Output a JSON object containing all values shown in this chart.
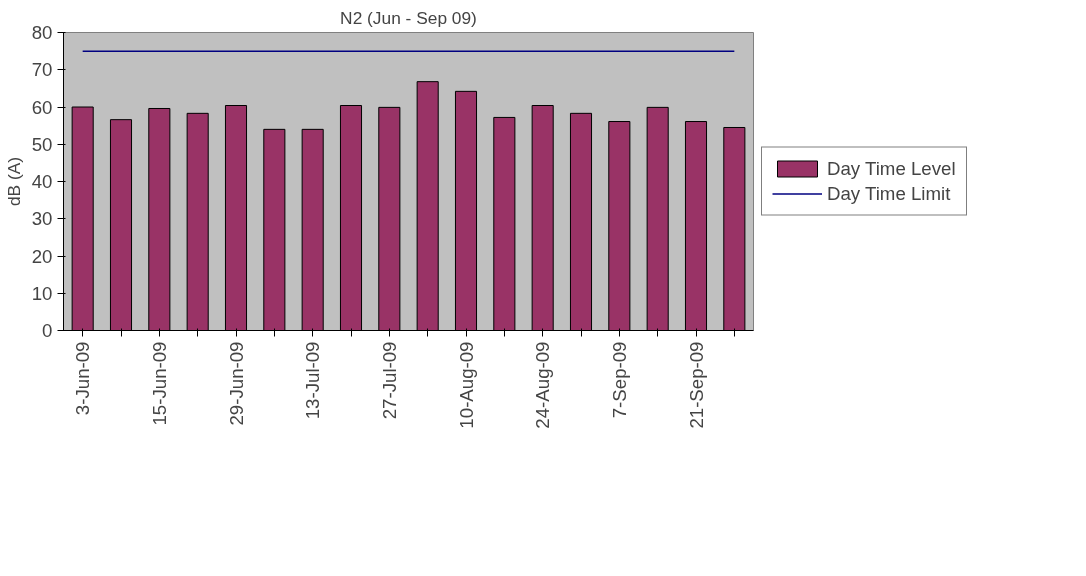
{
  "chart_data": {
    "type": "bar",
    "title": "N2 (Jun - Sep 09)",
    "ylabel": "dB (A)",
    "categories": [
      "3-Jun-09",
      null,
      "15-Jun-09",
      null,
      "29-Jun-09",
      null,
      "13-Jul-09",
      null,
      "27-Jul-09",
      null,
      "10-Aug-09",
      null,
      "24-Aug-09",
      null,
      "7-Sep-09",
      null,
      "21-Sep-09",
      null
    ],
    "series": [
      {
        "name": "Day Time Level",
        "color": "#993366",
        "values": [
          60,
          56.6,
          59.6,
          58.3,
          60.4,
          54,
          54,
          60.4,
          59.9,
          66.8,
          64.2,
          57.2,
          60.4,
          58.3,
          56.1,
          59.9,
          56.1,
          54.5
        ]
      },
      {
        "name": "Day Time Limit",
        "type": "line",
        "color": "#000080",
        "values": [
          75,
          75,
          75,
          75,
          75,
          75,
          75,
          75,
          75,
          75,
          75,
          75,
          75,
          75,
          75,
          75,
          75,
          75
        ]
      }
    ],
    "ylim": [
      0,
      80
    ],
    "yticks": [
      0,
      10,
      20,
      30,
      40,
      50,
      60,
      70,
      80
    ],
    "grid": false,
    "legend": "right",
    "marker": "none",
    "line_style": "solid"
  }
}
